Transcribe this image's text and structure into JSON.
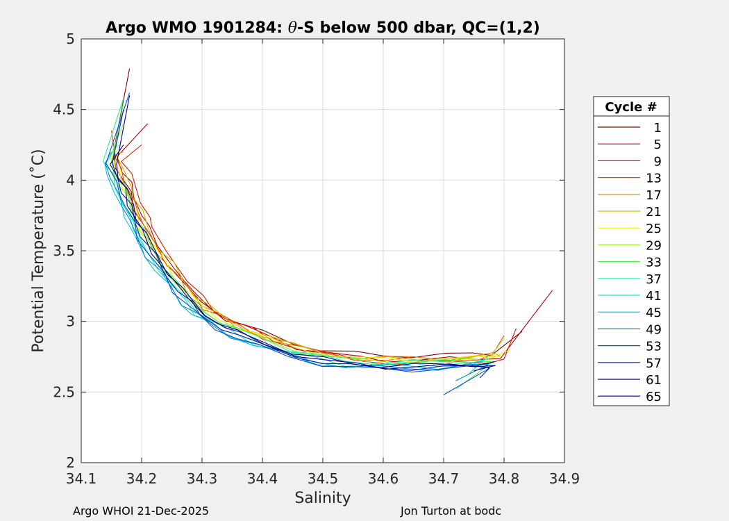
{
  "chart_data": {
    "type": "line",
    "title_prefix": "Argo WMO 1901284: ",
    "title_theta": "θ",
    "title_suffix": "-S below 500 dbar,  QC=(1,2)",
    "xlabel": "Salinity",
    "ylabel": "Potential Temperature (˚C)",
    "xlim": [
      34.1,
      34.9
    ],
    "ylim": [
      2,
      5
    ],
    "xticks": [
      "34.1",
      "34.2",
      "34.3",
      "34.4",
      "34.5",
      "34.6",
      "34.7",
      "34.8",
      "34.9"
    ],
    "yticks": [
      "2",
      "2.5",
      "3",
      "3.5",
      "4",
      "4.5",
      "5"
    ],
    "grid": true,
    "legend": {
      "title": "Cycle #",
      "position": "right-outside",
      "entries": [
        {
          "label": "1",
          "color": "#800000"
        },
        {
          "label": "5",
          "color": "#b00000"
        },
        {
          "label": "9",
          "color": "#d41a00"
        },
        {
          "label": "13",
          "color": "#e84c00"
        },
        {
          "label": "17",
          "color": "#f07f00"
        },
        {
          "label": "21",
          "color": "#c8b400"
        },
        {
          "label": "25",
          "color": "#f0f000"
        },
        {
          "label": "29",
          "color": "#a0f030"
        },
        {
          "label": "33",
          "color": "#50f050"
        },
        {
          "label": "37",
          "color": "#20f0a0"
        },
        {
          "label": "41",
          "color": "#20e0c8"
        },
        {
          "label": "45",
          "color": "#00c0e8"
        },
        {
          "label": "49",
          "color": "#0090c8"
        },
        {
          "label": "53",
          "color": "#0050e0"
        },
        {
          "label": "57",
          "color": "#0020b0"
        },
        {
          "label": "61",
          "color": "#000090"
        },
        {
          "label": "65",
          "color": "#000070"
        }
      ]
    },
    "base_curve": {
      "s": [
        34.15,
        34.16,
        34.17,
        34.18,
        34.19,
        34.2,
        34.22,
        34.24,
        34.26,
        34.28,
        34.3,
        34.33,
        34.36,
        34.4,
        34.45,
        34.5,
        34.55,
        34.6,
        34.65,
        34.7,
        34.75,
        34.78
      ],
      "t": [
        4.15,
        4.05,
        3.95,
        3.85,
        3.75,
        3.65,
        3.5,
        3.38,
        3.27,
        3.17,
        3.08,
        3.0,
        2.94,
        2.87,
        2.8,
        2.75,
        2.72,
        2.71,
        2.71,
        2.71,
        2.72,
        2.73
      ]
    },
    "series": [
      {
        "name": "1",
        "color": "#800000",
        "s_offset": 0.0,
        "t_offset": 0.05,
        "end": [
          34.83,
          2.93
        ],
        "top": [
          34.18,
          4.79
        ]
      },
      {
        "name": "5",
        "color": "#b00000",
        "s_offset": 0.01,
        "t_offset": 0.02,
        "end": [
          34.88,
          3.22
        ],
        "top": [
          34.21,
          4.4
        ]
      },
      {
        "name": "9",
        "color": "#d41a00",
        "s_offset": 0.02,
        "t_offset": 0.0,
        "end": [
          34.82,
          2.95
        ],
        "top": [
          34.2,
          4.25
        ]
      },
      {
        "name": "13",
        "color": "#e84c00",
        "s_offset": 0.005,
        "t_offset": 0.02,
        "end": [
          34.8,
          2.9
        ],
        "top": [
          34.15,
          4.35
        ]
      },
      {
        "name": "17",
        "color": "#f07f00",
        "s_offset": 0.0,
        "t_offset": 0.03,
        "end": [
          34.79,
          2.82
        ],
        "top": [
          34.16,
          4.3
        ]
      },
      {
        "name": "21",
        "color": "#c8b400",
        "s_offset": 0.01,
        "t_offset": 0.02,
        "end": [
          34.78,
          2.78
        ],
        "top": [
          34.17,
          4.2
        ]
      },
      {
        "name": "25",
        "color": "#f0f000",
        "s_offset": 0.0,
        "t_offset": 0.02,
        "end": [
          34.81,
          2.8
        ],
        "top": [
          34.16,
          4.2
        ]
      },
      {
        "name": "29",
        "color": "#a0f030",
        "s_offset": -0.005,
        "t_offset": 0.01,
        "end": [
          34.8,
          2.88
        ],
        "top": [
          34.17,
          4.4
        ]
      },
      {
        "name": "33",
        "color": "#50f050",
        "s_offset": 0.0,
        "t_offset": 0.0,
        "end": [
          34.72,
          2.52
        ],
        "top": [
          34.17,
          4.55
        ]
      },
      {
        "name": "37",
        "color": "#20f0a0",
        "s_offset": -0.01,
        "t_offset": 0.0,
        "end": [
          34.77,
          2.75
        ],
        "top": [
          34.17,
          4.58
        ]
      },
      {
        "name": "41",
        "color": "#20e0c8",
        "s_offset": -0.01,
        "t_offset": -0.02,
        "end": [
          34.76,
          2.68
        ],
        "top": [
          34.16,
          4.25
        ]
      },
      {
        "name": "45",
        "color": "#00c0e8",
        "s_offset": -0.015,
        "t_offset": -0.03,
        "end": [
          34.74,
          2.62
        ],
        "top": [
          34.15,
          4.2
        ]
      },
      {
        "name": "49",
        "color": "#0090c8",
        "s_offset": -0.01,
        "t_offset": -0.04,
        "end": [
          34.72,
          2.58
        ],
        "top": [
          34.14,
          4.1
        ]
      },
      {
        "name": "53",
        "color": "#0050e0",
        "s_offset": -0.005,
        "t_offset": -0.05,
        "end": [
          34.7,
          2.48
        ],
        "top": [
          34.18,
          4.62
        ]
      },
      {
        "name": "57",
        "color": "#0020b0",
        "s_offset": 0.0,
        "t_offset": -0.04,
        "end": [
          34.76,
          2.6
        ],
        "top": [
          34.17,
          4.5
        ]
      },
      {
        "name": "61",
        "color": "#000090",
        "s_offset": 0.005,
        "t_offset": -0.03,
        "end": [
          34.75,
          2.65
        ],
        "top": [
          34.18,
          4.6
        ]
      },
      {
        "name": "65",
        "color": "#000070",
        "s_offset": 0.0,
        "t_offset": -0.02,
        "end": [
          34.77,
          2.7
        ],
        "top": [
          34.17,
          4.25
        ]
      }
    ]
  },
  "footer": {
    "left": "Argo WHOI 21-Dec-2025",
    "right": "Jon Turton at bodc"
  }
}
